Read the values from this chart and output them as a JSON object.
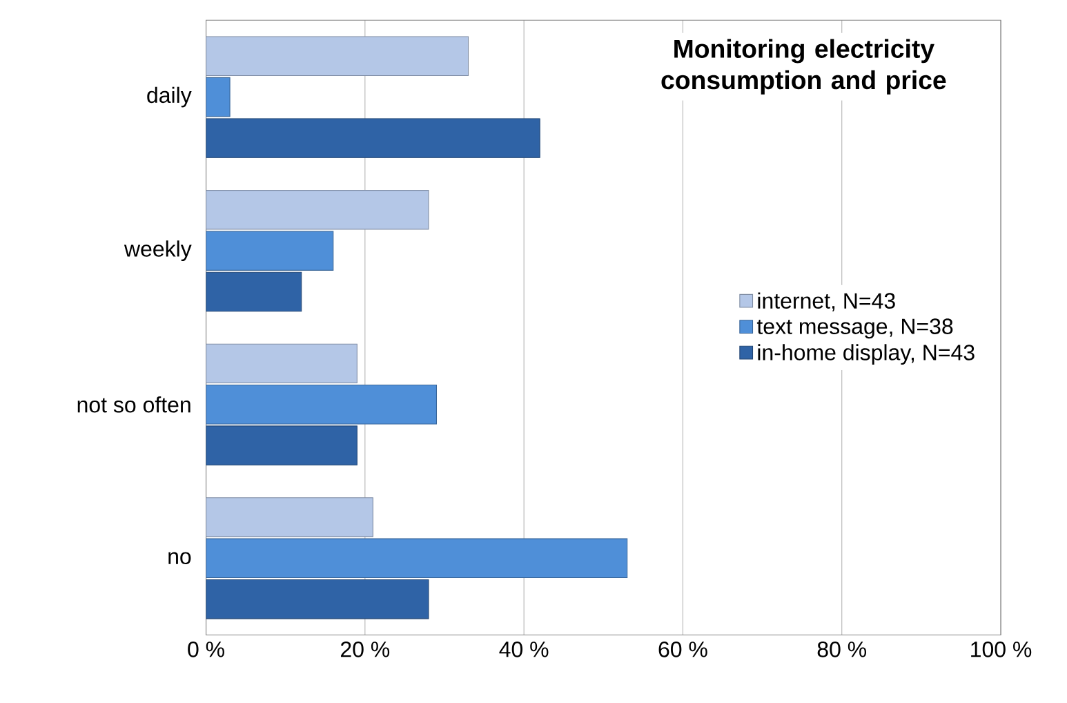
{
  "chart_data": {
    "type": "bar",
    "orientation": "horizontal",
    "title": "Monitoring electricity consumption and price",
    "categories": [
      "daily",
      "weekly",
      "not so often",
      "no"
    ],
    "series": [
      {
        "name": "internet, N=43",
        "color": "#b4c7e7",
        "values": [
          33,
          28,
          19,
          21
        ]
      },
      {
        "name": "text message, N=38",
        "color": "#4f8fd8",
        "values": [
          3,
          16,
          29,
          53
        ]
      },
      {
        "name": "in-home display, N=43",
        "color": "#2f63a6",
        "values": [
          42,
          12,
          19,
          28
        ]
      }
    ],
    "xlim": [
      0,
      100
    ],
    "xticks": [
      {
        "value": 0,
        "label": "0 %"
      },
      {
        "value": 20,
        "label": "20 %"
      },
      {
        "value": 40,
        "label": "40 %"
      },
      {
        "value": 60,
        "label": "60 %"
      },
      {
        "value": 80,
        "label": "80 %"
      },
      {
        "value": 100,
        "label": "100 %"
      }
    ],
    "grid": "x",
    "legend": "right"
  }
}
